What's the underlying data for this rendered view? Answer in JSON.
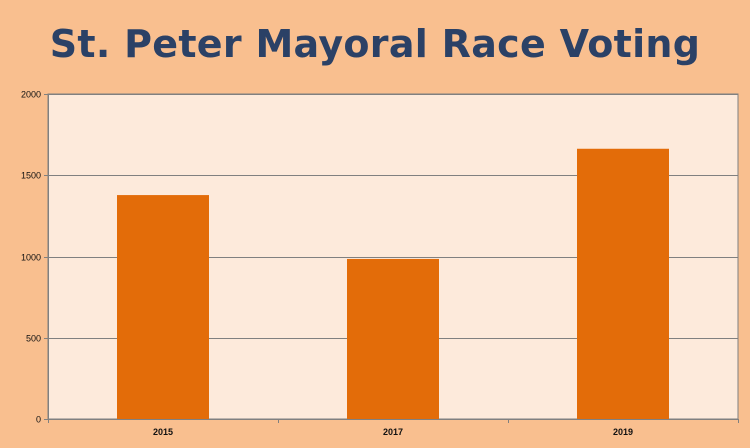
{
  "chart_data": {
    "type": "bar",
    "title": "St. Peter Mayoral Race Voting",
    "categories": [
      "2015",
      "2017",
      "2019"
    ],
    "values": [
      1378,
      985,
      1663
    ],
    "ylim": [
      0,
      2000
    ],
    "yticks": [
      0,
      500,
      1000,
      1500,
      2000
    ],
    "xlabel": "",
    "ylabel": "",
    "grid": true,
    "legend": "none",
    "colors": {
      "page_background": "#f9bf8f",
      "plot_background": "#fdeadb",
      "bar": "#e36c09",
      "title": "#2b4166",
      "gridline": "#808080"
    }
  }
}
